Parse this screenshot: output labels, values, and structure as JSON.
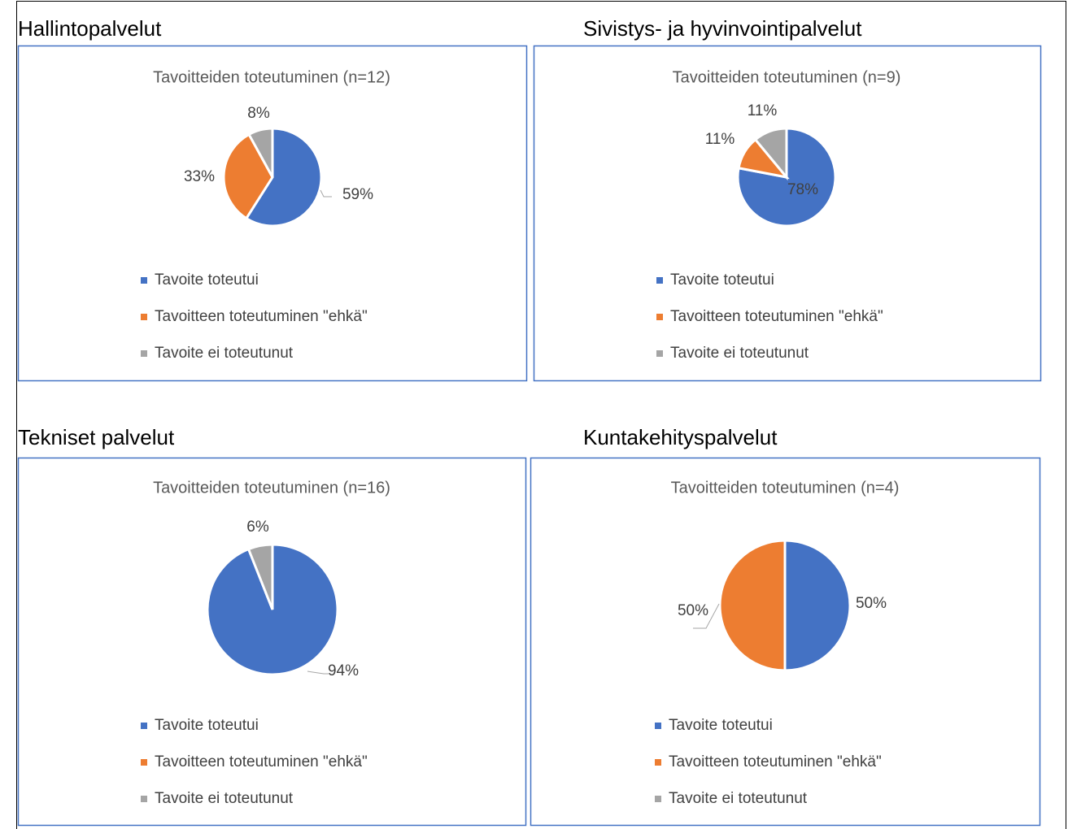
{
  "headings": [
    "Hallintopalvelut",
    "Sivistys- ja hyvinvointipalvelut",
    "Tekniset palvelut",
    "Kuntakehityspalvelut"
  ],
  "chart_data": [
    {
      "type": "pie",
      "title": "Tavoitteiden toteutuminen (n=12)",
      "categories": [
        "Tavoite toteutui",
        "Tavoitteen toteutuminen \"ehkä\"",
        "Tavoite ei toteutunut"
      ],
      "values": [
        59,
        33,
        8
      ],
      "value_labels": [
        "59%",
        "33%",
        "8%"
      ],
      "colors": [
        "#4472c4",
        "#ed7d31",
        "#a5a5a5"
      ],
      "legend": "bottom"
    },
    {
      "type": "pie",
      "title": "Tavoitteiden toteutuminen (n=9)",
      "categories": [
        "Tavoite toteutui",
        "Tavoitteen toteutuminen \"ehkä\"",
        "Tavoite ei toteutunut"
      ],
      "values": [
        78,
        11,
        11
      ],
      "value_labels": [
        "78%",
        "11%",
        "11%"
      ],
      "colors": [
        "#4472c4",
        "#ed7d31",
        "#a5a5a5"
      ],
      "legend": "bottom"
    },
    {
      "type": "pie",
      "title": "Tavoitteiden toteutuminen (n=16)",
      "categories": [
        "Tavoite toteutui",
        "Tavoitteen toteutuminen \"ehkä\"",
        "Tavoite ei toteutunut"
      ],
      "values": [
        94,
        0,
        6
      ],
      "value_labels": [
        "94%",
        null,
        "6%"
      ],
      "colors": [
        "#4472c4",
        "#ed7d31",
        "#a5a5a5"
      ],
      "legend": "bottom"
    },
    {
      "type": "pie",
      "title": "Tavoitteiden toteutuminen (n=4)",
      "categories": [
        "Tavoite toteutui",
        "Tavoitteen toteutuminen \"ehkä\"",
        "Tavoite ei toteutunut"
      ],
      "values": [
        50,
        50,
        0
      ],
      "value_labels": [
        "50%",
        "50%",
        null
      ],
      "colors": [
        "#4472c4",
        "#ed7d31",
        "#a5a5a5"
      ],
      "legend": "bottom"
    }
  ]
}
